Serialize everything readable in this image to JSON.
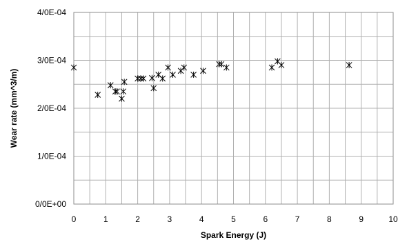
{
  "chart_data": {
    "type": "scatter",
    "xlabel": "Spark Energy (J)",
    "ylabel": "Wear rate (mm^3/m)",
    "xlim": [
      0,
      10
    ],
    "ylim": [
      0,
      0.0004
    ],
    "x_ticks": [
      "0",
      "1",
      "2",
      "3",
      "4",
      "5",
      "6",
      "7",
      "8",
      "9",
      "10"
    ],
    "y_ticks": [
      "0/0E+00",
      "1/0E-04",
      "2/0E-04",
      "3/0E-04",
      "4/0E-04"
    ],
    "grid": true,
    "marker": "asterisk",
    "marker_color": "#000000",
    "points": [
      {
        "x": 0.0,
        "y": 0.000285
      },
      {
        "x": 0.75,
        "y": 0.000228
      },
      {
        "x": 1.15,
        "y": 0.000248
      },
      {
        "x": 1.3,
        "y": 0.000235
      },
      {
        "x": 1.35,
        "y": 0.000235
      },
      {
        "x": 1.5,
        "y": 0.00022
      },
      {
        "x": 1.55,
        "y": 0.000235
      },
      {
        "x": 1.58,
        "y": 0.000255
      },
      {
        "x": 2.0,
        "y": 0.000262
      },
      {
        "x": 2.1,
        "y": 0.000262
      },
      {
        "x": 2.18,
        "y": 0.000262
      },
      {
        "x": 2.45,
        "y": 0.000263
      },
      {
        "x": 2.5,
        "y": 0.000242
      },
      {
        "x": 2.65,
        "y": 0.00027
      },
      {
        "x": 2.78,
        "y": 0.000262
      },
      {
        "x": 2.95,
        "y": 0.000285
      },
      {
        "x": 3.1,
        "y": 0.00027
      },
      {
        "x": 3.35,
        "y": 0.000278
      },
      {
        "x": 3.45,
        "y": 0.000285
      },
      {
        "x": 3.75,
        "y": 0.00027
      },
      {
        "x": 4.05,
        "y": 0.000278
      },
      {
        "x": 4.55,
        "y": 0.000292
      },
      {
        "x": 4.62,
        "y": 0.000292
      },
      {
        "x": 4.78,
        "y": 0.000285
      },
      {
        "x": 6.2,
        "y": 0.000285
      },
      {
        "x": 6.38,
        "y": 0.000298
      },
      {
        "x": 6.5,
        "y": 0.00029
      },
      {
        "x": 8.62,
        "y": 0.00029
      }
    ]
  }
}
